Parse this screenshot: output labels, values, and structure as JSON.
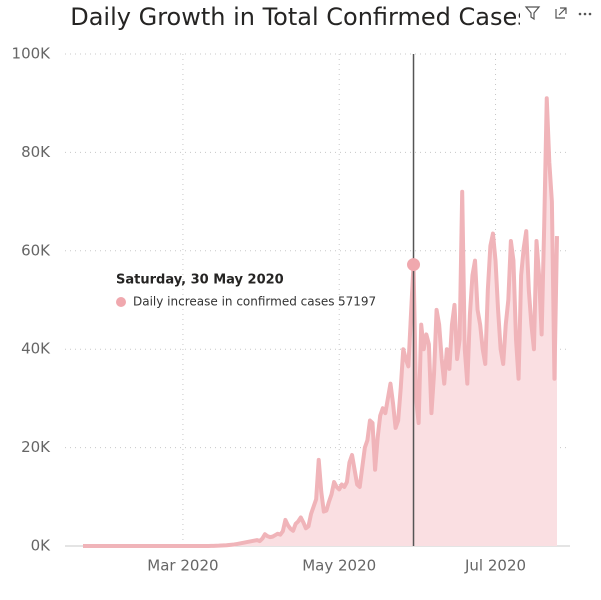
{
  "chart_data": {
    "type": "area",
    "title": "Daily Growth in Total Confirmed Cases",
    "x": [
      "2020-01-22",
      "2020-01-23",
      "2020-01-24",
      "2020-01-25",
      "2020-01-26",
      "2020-01-27",
      "2020-01-28",
      "2020-01-29",
      "2020-01-30",
      "2020-01-31",
      "2020-02-01",
      "2020-02-02",
      "2020-02-03",
      "2020-02-04",
      "2020-02-05",
      "2020-02-06",
      "2020-02-07",
      "2020-02-08",
      "2020-02-09",
      "2020-02-10",
      "2020-02-11",
      "2020-02-12",
      "2020-02-13",
      "2020-02-14",
      "2020-02-15",
      "2020-02-16",
      "2020-02-17",
      "2020-02-18",
      "2020-02-19",
      "2020-02-20",
      "2020-02-21",
      "2020-02-22",
      "2020-02-23",
      "2020-02-24",
      "2020-02-25",
      "2020-02-26",
      "2020-02-27",
      "2020-02-28",
      "2020-02-29",
      "2020-03-01",
      "2020-03-02",
      "2020-03-03",
      "2020-03-04",
      "2020-03-05",
      "2020-03-06",
      "2020-03-07",
      "2020-03-08",
      "2020-03-09",
      "2020-03-10",
      "2020-03-11",
      "2020-03-12",
      "2020-03-13",
      "2020-03-14",
      "2020-03-15",
      "2020-03-16",
      "2020-03-17",
      "2020-03-18",
      "2020-03-19",
      "2020-03-20",
      "2020-03-21",
      "2020-03-22",
      "2020-03-23",
      "2020-03-24",
      "2020-03-25",
      "2020-03-26",
      "2020-03-27",
      "2020-03-28",
      "2020-03-29",
      "2020-03-30",
      "2020-03-31",
      "2020-04-01",
      "2020-04-02",
      "2020-04-03",
      "2020-04-04",
      "2020-04-05",
      "2020-04-06",
      "2020-04-07",
      "2020-04-08",
      "2020-04-09",
      "2020-04-10",
      "2020-04-11",
      "2020-04-12",
      "2020-04-13",
      "2020-04-14",
      "2020-04-15",
      "2020-04-16",
      "2020-04-17",
      "2020-04-18",
      "2020-04-19",
      "2020-04-20",
      "2020-04-21",
      "2020-04-22",
      "2020-04-23",
      "2020-04-24",
      "2020-04-25",
      "2020-04-26",
      "2020-04-27",
      "2020-04-28",
      "2020-04-29",
      "2020-04-30",
      "2020-05-01",
      "2020-05-02",
      "2020-05-03",
      "2020-05-04",
      "2020-05-05",
      "2020-05-06",
      "2020-05-07",
      "2020-05-08",
      "2020-05-09",
      "2020-05-10",
      "2020-05-11",
      "2020-05-12",
      "2020-05-13",
      "2020-05-14",
      "2020-05-15",
      "2020-05-16",
      "2020-05-17",
      "2020-05-18",
      "2020-05-19",
      "2020-05-20",
      "2020-05-21",
      "2020-05-22",
      "2020-05-23",
      "2020-05-24",
      "2020-05-25",
      "2020-05-26",
      "2020-05-27",
      "2020-05-28",
      "2020-05-29",
      "2020-05-30",
      "2020-05-31",
      "2020-06-01",
      "2020-06-02",
      "2020-06-03",
      "2020-06-04",
      "2020-06-05",
      "2020-06-06",
      "2020-06-07",
      "2020-06-08",
      "2020-06-09",
      "2020-06-10",
      "2020-06-11",
      "2020-06-12",
      "2020-06-13",
      "2020-06-14",
      "2020-06-15",
      "2020-06-16",
      "2020-06-17",
      "2020-06-18",
      "2020-06-19",
      "2020-06-20",
      "2020-06-21",
      "2020-06-22",
      "2020-06-23",
      "2020-06-24",
      "2020-06-25",
      "2020-06-26",
      "2020-06-27",
      "2020-06-28",
      "2020-06-29",
      "2020-06-30",
      "2020-07-01",
      "2020-07-02",
      "2020-07-03",
      "2020-07-04",
      "2020-07-05",
      "2020-07-06",
      "2020-07-07",
      "2020-07-08",
      "2020-07-09",
      "2020-07-10",
      "2020-07-11",
      "2020-07-12",
      "2020-07-13",
      "2020-07-14",
      "2020-07-15",
      "2020-07-16",
      "2020-07-17",
      "2020-07-18",
      "2020-07-19",
      "2020-07-20",
      "2020-07-21",
      "2020-07-22",
      "2020-07-23",
      "2020-07-24",
      "2020-07-25"
    ],
    "series": [
      {
        "name": "Daily increase in confirmed cases",
        "color": "#f0b4b9",
        "fill": "#fadfe2",
        "values": [
          0,
          0,
          0,
          0,
          0,
          0,
          0,
          0,
          0,
          0,
          0,
          0,
          0,
          0,
          0,
          0,
          0,
          0,
          0,
          0,
          0,
          0,
          0,
          0,
          0,
          0,
          0,
          0,
          0,
          0,
          0,
          0,
          0,
          0,
          0,
          0,
          0,
          0,
          0,
          0,
          0,
          0,
          0,
          0,
          0,
          0,
          0,
          0,
          0,
          10,
          20,
          30,
          50,
          70,
          100,
          120,
          150,
          200,
          250,
          300,
          400,
          500,
          600,
          700,
          800,
          900,
          1000,
          1100,
          1200,
          1000,
          1500,
          2400,
          2000,
          1800,
          1900,
          2200,
          2500,
          2300,
          3000,
          5300,
          4200,
          3500,
          3100,
          4500,
          5000,
          5800,
          4800,
          3600,
          4000,
          6500,
          8000,
          9500,
          17500,
          11000,
          7000,
          7200,
          9000,
          10500,
          13000,
          12000,
          11500,
          12500,
          12000,
          13000,
          17000,
          18500,
          15500,
          12500,
          12000,
          16000,
          20000,
          21500,
          25500,
          25000,
          15500,
          22000,
          26500,
          28000,
          27000,
          30000,
          33000,
          29000,
          24000,
          25500,
          32000,
          40000,
          38000,
          36500,
          47000,
          57197,
          30000,
          25000,
          45000,
          40000,
          43000,
          41000,
          27000,
          35000,
          48000,
          45000,
          38000,
          33000,
          40000,
          36000,
          45000,
          49000,
          38000,
          42000,
          72000,
          40000,
          33000,
          47000,
          55000,
          58000,
          48000,
          45000,
          40000,
          37000,
          52000,
          61000,
          63500,
          58000,
          48000,
          40000,
          37000,
          45000,
          50000,
          62000,
          58000,
          42000,
          34000,
          55000,
          60500,
          64000,
          52000,
          45000,
          40000,
          62000,
          55000,
          43000,
          65000,
          91000,
          78000,
          70000,
          34000,
          63000
        ]
      }
    ],
    "xlim": [
      "2020-01-22",
      "2020-07-25"
    ],
    "xticks": [
      {
        "value": "2020-03-01",
        "label": "Mar 2020"
      },
      {
        "value": "2020-05-01",
        "label": "May 2020"
      },
      {
        "value": "2020-07-01",
        "label": "Jul 2020"
      }
    ],
    "ylim": [
      0,
      100000
    ],
    "yticks": [
      {
        "value": 0,
        "label": "0K"
      },
      {
        "value": 20000,
        "label": "20K"
      },
      {
        "value": 40000,
        "label": "40K"
      },
      {
        "value": 60000,
        "label": "60K"
      },
      {
        "value": 80000,
        "label": "80K"
      },
      {
        "value": 100000,
        "label": "100K"
      }
    ],
    "grid": true,
    "tooltip": {
      "title": "Saturday, 30 May 2020"
    }
  }
}
